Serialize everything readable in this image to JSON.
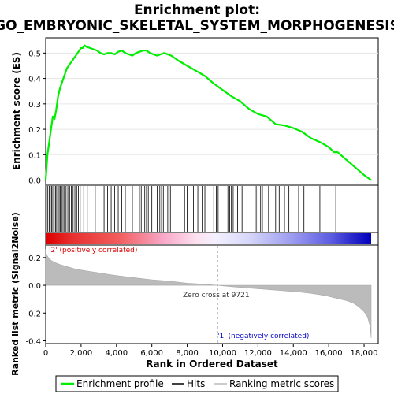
{
  "title": {
    "line1": "Enrichment plot:",
    "line2": "GO_EMBRYONIC_SKELETAL_SYSTEM_MORPHOGENESIS"
  },
  "chart_data": [
    {
      "type": "line",
      "name": "enrichment",
      "ylabel": "Enrichment score (ES)",
      "ylim": [
        -0.02,
        0.56
      ],
      "xlim": [
        0,
        18800
      ],
      "yticks": [
        "0.0",
        "0.1",
        "0.2",
        "0.3",
        "0.4",
        "0.5"
      ],
      "ytick_values": [
        0,
        0.1,
        0.2,
        0.3,
        0.4,
        0.5
      ],
      "color": "#00ee00",
      "series": [
        {
          "name": "Enrichment profile",
          "x": [
            0,
            100,
            200,
            300,
            400,
            500,
            600,
            700,
            800,
            900,
            1000,
            1100,
            1200,
            1300,
            1400,
            1500,
            1600,
            1700,
            1800,
            1900,
            2000,
            2100,
            2200,
            2300,
            2500,
            2700,
            2900,
            3100,
            3300,
            3500,
            3700,
            3900,
            4100,
            4300,
            4500,
            4700,
            4900,
            5100,
            5300,
            5500,
            5700,
            5900,
            6100,
            6300,
            6500,
            6700,
            6900,
            7100,
            7500,
            8000,
            8500,
            9000,
            9500,
            10000,
            10500,
            11000,
            11500,
            12000,
            12500,
            13000,
            13500,
            14000,
            14500,
            15000,
            15500,
            16000,
            16300,
            16500,
            17000,
            17500,
            18000,
            18400
          ],
          "y": [
            0.0,
            0.1,
            0.15,
            0.2,
            0.25,
            0.24,
            0.28,
            0.33,
            0.36,
            0.38,
            0.4,
            0.42,
            0.44,
            0.45,
            0.46,
            0.47,
            0.48,
            0.49,
            0.5,
            0.51,
            0.52,
            0.52,
            0.53,
            0.525,
            0.52,
            0.515,
            0.51,
            0.5,
            0.495,
            0.5,
            0.5,
            0.495,
            0.505,
            0.51,
            0.5,
            0.495,
            0.49,
            0.5,
            0.505,
            0.51,
            0.51,
            0.5,
            0.495,
            0.49,
            0.495,
            0.5,
            0.495,
            0.49,
            0.47,
            0.45,
            0.43,
            0.41,
            0.38,
            0.355,
            0.33,
            0.31,
            0.28,
            0.26,
            0.25,
            0.22,
            0.215,
            0.205,
            0.19,
            0.165,
            0.15,
            0.13,
            0.11,
            0.11,
            0.08,
            0.05,
            0.02,
            0.0
          ]
        }
      ]
    },
    {
      "type": "scatter",
      "name": "hits",
      "series": [
        {
          "name": "Hits",
          "x": [
            40,
            120,
            200,
            260,
            330,
            400,
            480,
            560,
            620,
            700,
            760,
            820,
            900,
            980,
            1060,
            1150,
            1250,
            1350,
            1450,
            1550,
            1650,
            1750,
            1850,
            1950,
            2150,
            2350,
            2800,
            3300,
            3500,
            3700,
            3900,
            4100,
            4300,
            4500,
            4900,
            5100,
            5300,
            5400,
            5500,
            5600,
            5700,
            5800,
            6000,
            6300,
            6450,
            6550,
            6650,
            6750,
            6900,
            7050,
            7850,
            8000,
            8350,
            8600,
            8850,
            9000,
            9500,
            9650,
            9750,
            10300,
            10400,
            10500,
            10600,
            10850,
            11100,
            11900,
            12000,
            12150,
            12250,
            12600,
            13000,
            13200,
            13500,
            13750,
            14300,
            14600,
            15500,
            16400
          ]
        }
      ]
    },
    {
      "type": "heatmap",
      "name": "rank-color-bar",
      "series": [
        {
          "name": "positive",
          "color": "#dd0000"
        },
        {
          "name": "negative",
          "color": "#0000cc"
        }
      ]
    },
    {
      "type": "area",
      "name": "ranked-metric",
      "ylabel": "Ranked list metric (Signal2Noise)",
      "xlabel": "Rank in Ordered Dataset",
      "ylim": [
        -0.42,
        0.29
      ],
      "xlim": [
        0,
        18800
      ],
      "yticks": [
        "0.2",
        "0.0",
        "-0.2",
        "-0.4"
      ],
      "ytick_values": [
        0.2,
        0.0,
        -0.2,
        -0.4
      ],
      "xticks": [
        "0",
        "2,000",
        "4,000",
        "6,000",
        "8,000",
        "10,000",
        "12,000",
        "14,000",
        "16,000",
        "18,000"
      ],
      "xtick_values": [
        0,
        2000,
        4000,
        6000,
        8000,
        10000,
        12000,
        14000,
        16000,
        18000
      ],
      "series": [
        {
          "name": "Ranking metric scores",
          "x": [
            0,
            50,
            150,
            300,
            500,
            800,
            1200,
            1600,
            2000,
            2500,
            3000,
            3500,
            4000,
            5000,
            6000,
            7000,
            8000,
            9000,
            9721,
            10500,
            11500,
            12500,
            13500,
            14500,
            15000,
            15500,
            16000,
            16500,
            17000,
            17400,
            17700,
            18000,
            18200,
            18350,
            18400
          ],
          "y": [
            0.26,
            0.22,
            0.2,
            0.18,
            0.165,
            0.15,
            0.135,
            0.12,
            0.11,
            0.1,
            0.09,
            0.08,
            0.07,
            0.055,
            0.04,
            0.03,
            0.015,
            0.007,
            0.0,
            -0.01,
            -0.02,
            -0.03,
            -0.04,
            -0.05,
            -0.058,
            -0.068,
            -0.08,
            -0.095,
            -0.11,
            -0.13,
            -0.155,
            -0.19,
            -0.23,
            -0.3,
            -0.38
          ]
        }
      ],
      "annotations": {
        "zero_cross": "Zero cross at 9721",
        "zero_cross_x": 9721,
        "positive": "'2' (positively correlated)",
        "negative": "'1' (negatively correlated)"
      }
    }
  ],
  "legend": {
    "items": [
      {
        "label": "Enrichment profile",
        "color": "#00ee00"
      },
      {
        "label": "Hits",
        "color": "#000000"
      },
      {
        "label": "Ranking metric scores",
        "color": "#bbbbbb"
      }
    ]
  }
}
